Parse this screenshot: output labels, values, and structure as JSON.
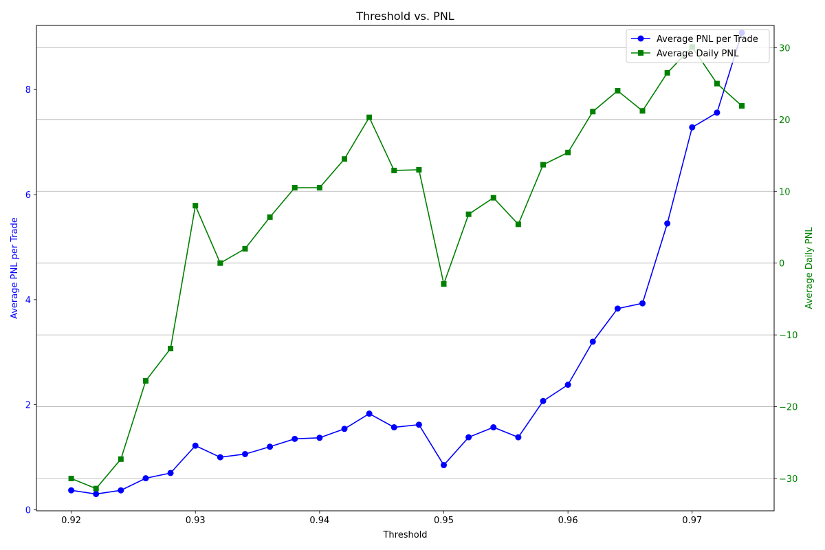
{
  "chart_data": {
    "type": "line",
    "title": "Threshold vs. PNL",
    "xlabel": "Threshold",
    "ylabel_left": "Average PNL per Trade",
    "ylabel_right": "Average Daily PNL",
    "xlim": [
      0.9172,
      0.9766
    ],
    "ylim_left": [
      -0.02,
      9.22
    ],
    "ylim_right": [
      -34.5,
      33.1
    ],
    "x_ticks": [
      "0.92",
      "0.93",
      "0.94",
      "0.95",
      "0.96",
      "0.97"
    ],
    "x_tick_values": [
      0.92,
      0.93,
      0.94,
      0.95,
      0.96,
      0.97
    ],
    "y_left_ticks": [
      "0",
      "2",
      "4",
      "6",
      "8"
    ],
    "y_left_tick_values": [
      0,
      2,
      4,
      6,
      8
    ],
    "y_right_ticks": [
      "−30",
      "−20",
      "−10",
      "0",
      "10",
      "20",
      "30"
    ],
    "y_right_tick_values": [
      -30,
      -20,
      -10,
      0,
      10,
      20,
      30
    ],
    "grid": "horizontal (right axis)",
    "legend_position": "top-right",
    "x": [
      0.92,
      0.922,
      0.924,
      0.926,
      0.928,
      0.93,
      0.932,
      0.934,
      0.936,
      0.938,
      0.94,
      0.942,
      0.944,
      0.946,
      0.948,
      0.95,
      0.952,
      0.954,
      0.956,
      0.958,
      0.96,
      0.962,
      0.964,
      0.966,
      0.968,
      0.97,
      0.972,
      0.974
    ],
    "series": [
      {
        "name": "Average PNL per Trade",
        "axis": "left",
        "color": "#0000ff",
        "marker": "circle",
        "values": [
          0.37,
          0.3,
          0.37,
          0.6,
          0.7,
          1.22,
          1.0,
          1.06,
          1.2,
          1.35,
          1.37,
          1.54,
          1.83,
          1.57,
          1.62,
          0.85,
          1.38,
          1.57,
          1.38,
          2.07,
          2.38,
          3.2,
          3.83,
          3.93,
          5.45,
          7.28,
          7.56,
          9.08
        ]
      },
      {
        "name": "Average Daily PNL",
        "axis": "right",
        "color": "#008000",
        "marker": "square",
        "values": [
          -30.0,
          -31.4,
          -27.3,
          -16.4,
          -11.9,
          8.0,
          0.0,
          2.0,
          6.4,
          10.5,
          10.5,
          14.5,
          20.3,
          12.9,
          13.0,
          -2.9,
          6.8,
          9.1,
          5.4,
          13.7,
          15.4,
          21.1,
          24.0,
          21.2,
          26.5,
          30.1,
          25.0,
          21.9
        ]
      }
    ]
  }
}
